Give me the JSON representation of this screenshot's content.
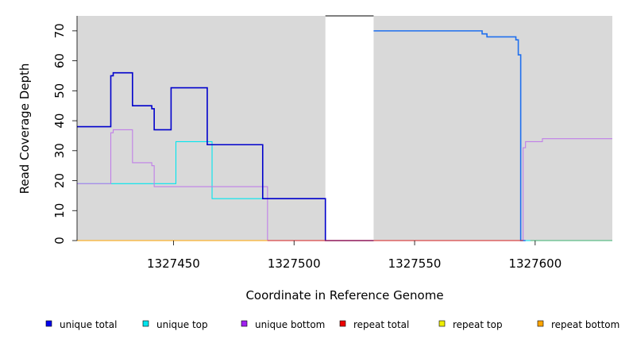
{
  "chart_data": {
    "type": "line",
    "title": "",
    "xlabel": "Coordinate in Reference Genome",
    "ylabel": "Read Coverage Depth",
    "xlim": [
      1327410,
      1327632
    ],
    "ylim": [
      0,
      75
    ],
    "xticks": [
      1327450,
      1327500,
      1327550,
      1327600
    ],
    "yticks": [
      0,
      10,
      20,
      30,
      40,
      50,
      60,
      70
    ],
    "background": "#d9d9d9",
    "gap": [
      1327513,
      1327533
    ],
    "legend_position": "bottom",
    "legend": [
      {
        "name": "unique total",
        "color": "#0000ee"
      },
      {
        "name": "unique top",
        "color": "#00e5ee"
      },
      {
        "name": "unique bottom",
        "color": "#a020f0"
      },
      {
        "name": "repeat total",
        "color": "#ee0000"
      },
      {
        "name": "repeat top",
        "color": "#eeee00"
      },
      {
        "name": "repeat bottom",
        "color": "#ffa500"
      }
    ],
    "series": [
      {
        "name": "unique top",
        "color": "#00e5ee",
        "points": [
          [
            1327410,
            19
          ],
          [
            1327426,
            19
          ],
          [
            1327426,
            19
          ],
          [
            1327451,
            19
          ],
          [
            1327451,
            33
          ],
          [
            1327466,
            33
          ],
          [
            1327466,
            14
          ],
          [
            1327489,
            14
          ],
          [
            1327489,
            14
          ],
          [
            1327513,
            14
          ],
          [
            1327513,
            0
          ],
          [
            1327594,
            0
          ],
          [
            1327594,
            0
          ],
          [
            1327599,
            0
          ],
          [
            1327632,
            0
          ]
        ]
      },
      {
        "name": "unique bottom",
        "color": "#c07ee8",
        "points": [
          [
            1327410,
            19
          ],
          [
            1327424,
            19
          ],
          [
            1327424,
            36
          ],
          [
            1327425,
            36
          ],
          [
            1327425,
            37
          ],
          [
            1327433,
            37
          ],
          [
            1327433,
            26
          ],
          [
            1327441,
            26
          ],
          [
            1327441,
            25
          ],
          [
            1327442,
            25
          ],
          [
            1327442,
            18
          ],
          [
            1327489,
            18
          ],
          [
            1327489,
            0
          ],
          [
            1327595,
            0
          ],
          [
            1327595,
            31
          ],
          [
            1327596,
            31
          ],
          [
            1327596,
            33
          ],
          [
            1327603,
            33
          ],
          [
            1327603,
            34
          ],
          [
            1327632,
            34
          ]
        ]
      },
      {
        "name": "unique total",
        "color": "#0000cc",
        "points": [
          [
            1327410,
            38
          ],
          [
            1327424,
            38
          ],
          [
            1327424,
            55
          ],
          [
            1327425,
            55
          ],
          [
            1327425,
            56
          ],
          [
            1327433,
            56
          ],
          [
            1327433,
            45
          ],
          [
            1327441,
            45
          ],
          [
            1327441,
            44
          ],
          [
            1327442,
            44
          ],
          [
            1327442,
            37
          ],
          [
            1327449,
            37
          ],
          [
            1327449,
            51
          ],
          [
            1327464,
            51
          ],
          [
            1327464,
            32
          ],
          [
            1327487,
            32
          ],
          [
            1327487,
            14
          ],
          [
            1327513,
            14
          ],
          [
            1327513,
            0
          ],
          [
            1327533,
            0
          ]
        ]
      },
      {
        "name": "unique total",
        "color": "#1f6fee",
        "points": [
          [
            1327533,
            70
          ],
          [
            1327578,
            70
          ],
          [
            1327578,
            69
          ],
          [
            1327580,
            69
          ],
          [
            1327580,
            68
          ],
          [
            1327592,
            68
          ],
          [
            1327592,
            67
          ],
          [
            1327593,
            67
          ],
          [
            1327593,
            62
          ],
          [
            1327594,
            62
          ],
          [
            1327594,
            0
          ],
          [
            1327596,
            0
          ]
        ]
      },
      {
        "name": "repeat bottom",
        "color": "#ffa500",
        "points": [
          [
            1327410,
            0
          ],
          [
            1327489,
            0
          ]
        ]
      },
      {
        "name": "repeat total",
        "color": "#d62020",
        "points": [
          [
            1327489,
            0
          ],
          [
            1327595,
            0
          ]
        ]
      },
      {
        "name": "repeat top",
        "color": "#3cb371",
        "points": [
          [
            1327598,
            0
          ],
          [
            1327632,
            0
          ]
        ]
      }
    ]
  }
}
